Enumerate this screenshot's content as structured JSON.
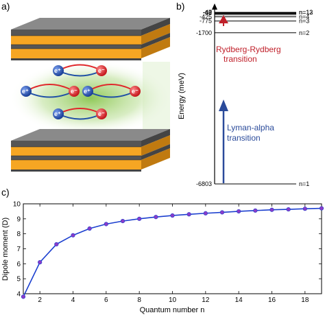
{
  "panels": {
    "a": "a)",
    "b": "b)",
    "c": "c)"
  },
  "colors": {
    "layer_orange": "#f6a623",
    "layer_gray": "#6f6f6f",
    "glow_green": "#7cbf3a",
    "electron_red": "#e0262a",
    "hole_blue": "#1f4fa6",
    "rydberg_arrow": "#c0202a",
    "lyman_arrow": "#2a4a9a",
    "line_blue": "#1a3ecf",
    "marker_purple": "#8a3cc8"
  },
  "diagram_a": {
    "particles": {
      "electron": "e⁻",
      "hole": "e⁺"
    }
  },
  "energy_diagram": {
    "ylabel": "Energy (meV)",
    "levels": [
      {
        "value": -6803,
        "label": "-6803",
        "state": "n=1"
      },
      {
        "value": -1700,
        "label": "-1700",
        "state": "n=2"
      },
      {
        "value": -775,
        "label": "-775",
        "state": "n=3"
      },
      {
        "value": -425,
        "label": "-425",
        "state": "n=4"
      },
      {
        "value": -68,
        "label": "-68",
        "state": ""
      },
      {
        "value": -47,
        "label": "-47",
        "state": "n=12"
      },
      {
        "value": -40,
        "label": "-40",
        "state": "n=13"
      }
    ],
    "upper_level_count": 13,
    "rydberg_label_line1": "Rydberg-Rydberg",
    "rydberg_label_line2": "transition",
    "lyman_label_line1": "Lyman-alpha",
    "lyman_label_line2": "transition"
  },
  "chart_data": {
    "type": "line",
    "xlabel": "Quantum number n",
    "ylabel": "Dipole moment (D)",
    "xlim": [
      1,
      19
    ],
    "ylim": [
      4,
      10
    ],
    "xticks": [
      2,
      4,
      6,
      8,
      10,
      12,
      14,
      16,
      18
    ],
    "yticks": [
      4,
      5,
      6,
      7,
      8,
      9,
      10
    ],
    "grid": false,
    "series": [
      {
        "x": [
          1,
          2,
          3,
          4,
          5,
          6,
          7,
          8,
          9,
          10,
          11,
          12,
          13,
          14,
          15,
          16,
          17,
          18,
          19
        ],
        "values": [
          3.8,
          6.1,
          7.3,
          7.9,
          8.35,
          8.65,
          8.85,
          9.0,
          9.12,
          9.22,
          9.3,
          9.37,
          9.43,
          9.5,
          9.55,
          9.6,
          9.63,
          9.67,
          9.7
        ]
      }
    ]
  }
}
